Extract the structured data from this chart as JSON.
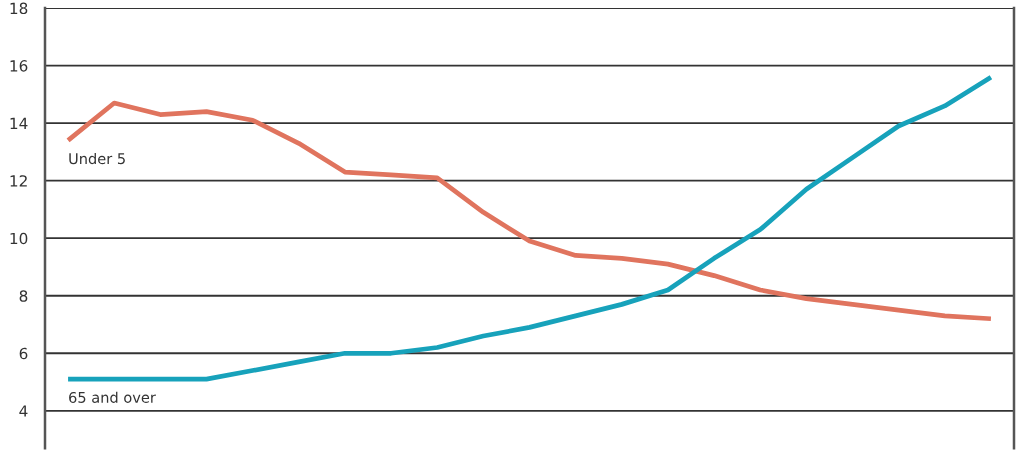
{
  "chart_data": {
    "type": "line",
    "categories": [
      null,
      null,
      null,
      null,
      null,
      null,
      null,
      null,
      null,
      null,
      null,
      null,
      null,
      null,
      null,
      null,
      null,
      null,
      null,
      null,
      null
    ],
    "series": [
      {
        "name": "Under 5",
        "color": "#e0745e",
        "values": [
          13.4,
          14.7,
          14.3,
          14.4,
          14.1,
          13.3,
          12.3,
          12.2,
          12.1,
          10.9,
          9.9,
          9.4,
          9.3,
          9.1,
          8.7,
          8.2,
          7.9,
          7.7,
          7.5,
          7.3,
          7.2
        ]
      },
      {
        "name": "65 and over",
        "color": "#17a2bb",
        "values": [
          5.1,
          5.1,
          5.1,
          5.1,
          5.4,
          5.7,
          6.0,
          6.0,
          6.2,
          6.6,
          6.9,
          7.3,
          7.7,
          8.2,
          9.3,
          10.3,
          11.7,
          12.8,
          13.9,
          14.6,
          15.6
        ]
      }
    ],
    "ylim": [
      2.7,
      18
    ],
    "yticks": [
      4,
      6,
      8,
      10,
      12,
      14,
      16,
      18
    ],
    "grid": "y",
    "legend": false,
    "marker": "none",
    "line_style": "solid",
    "tick_labels": "y"
  }
}
